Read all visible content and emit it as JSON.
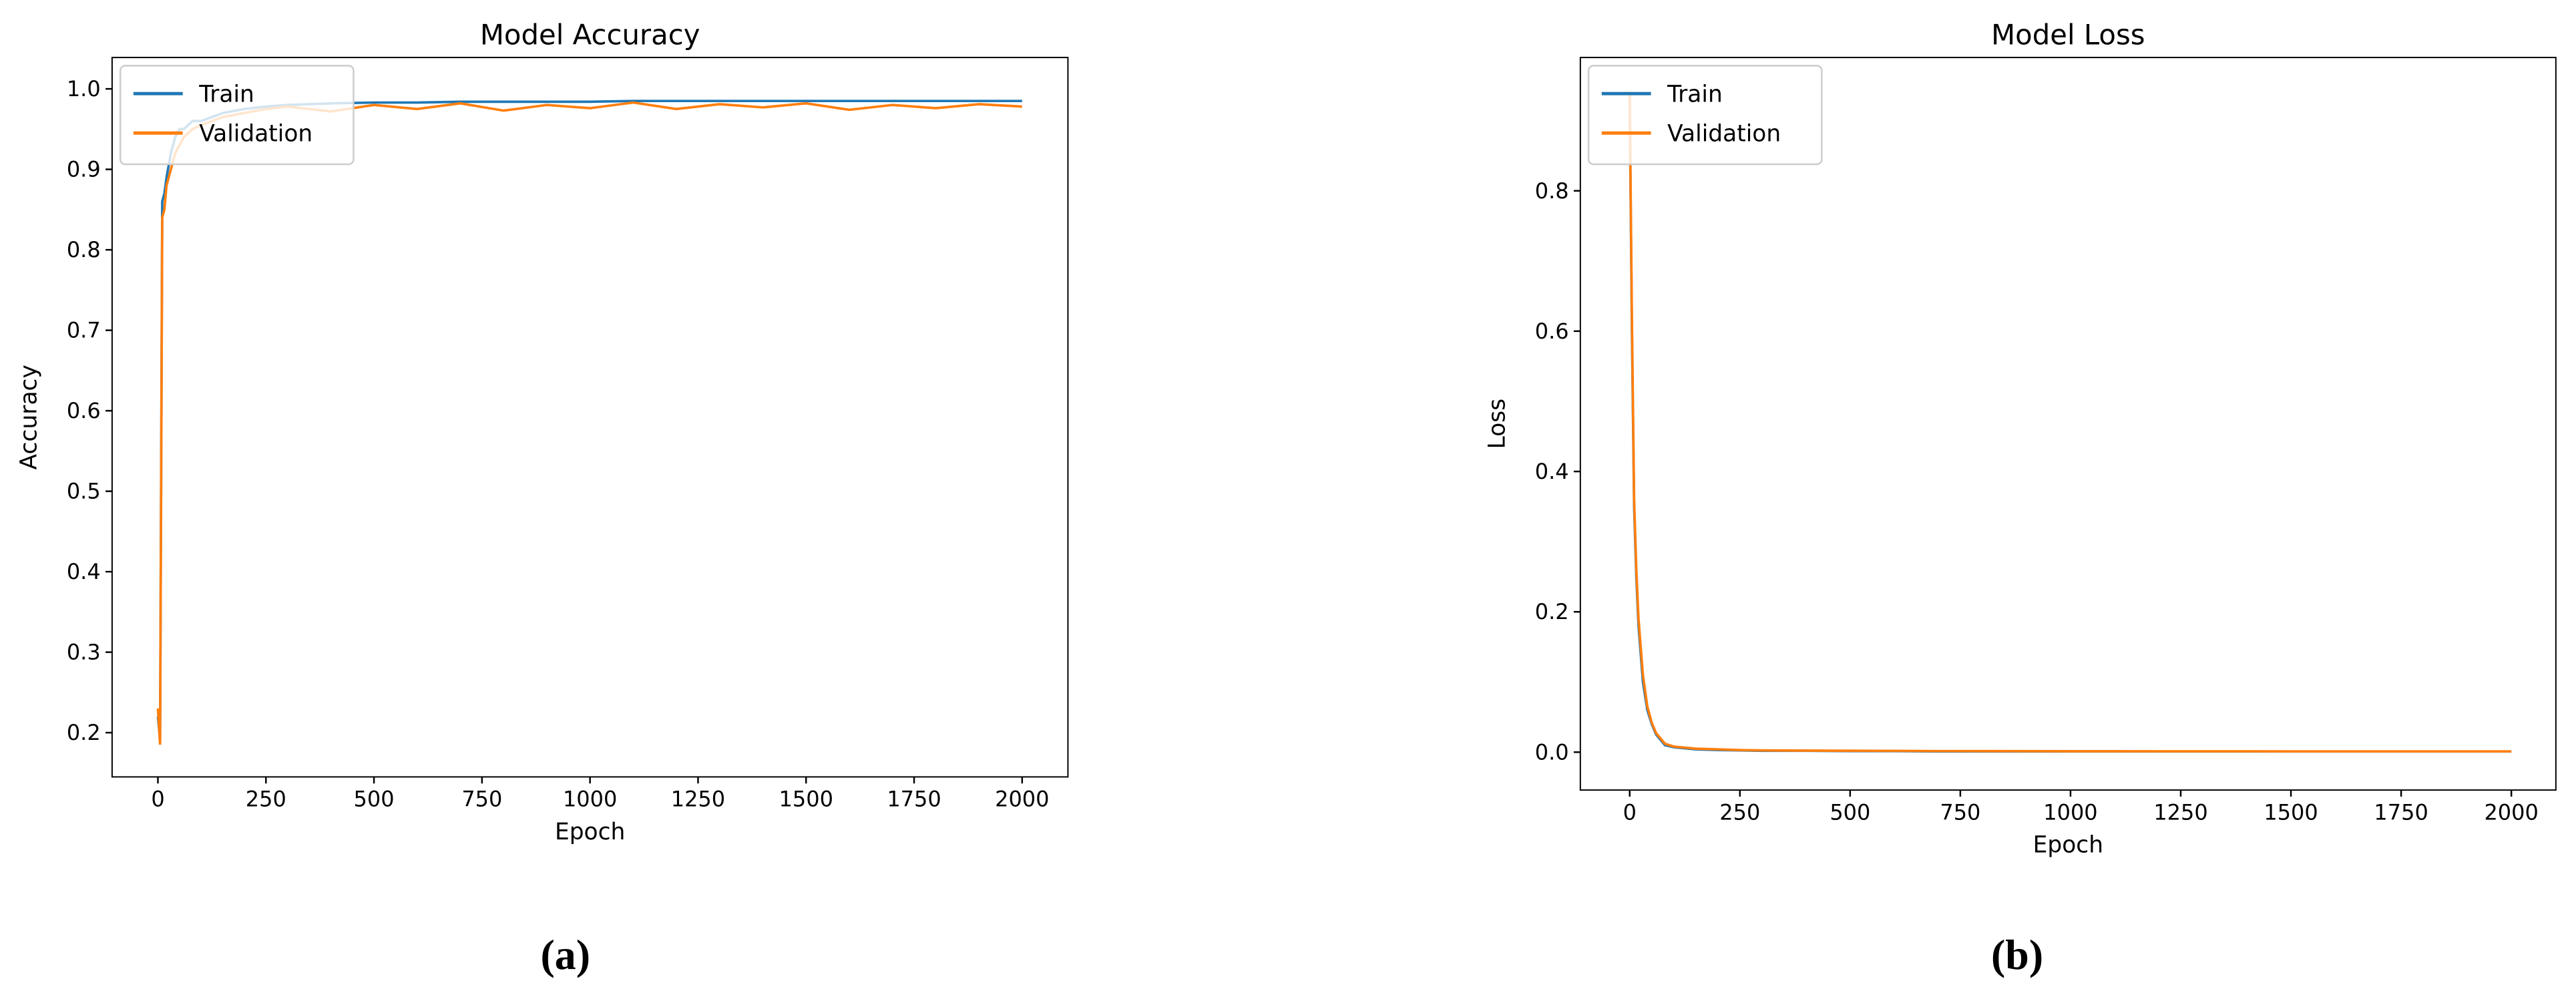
{
  "chart_data": [
    {
      "type": "line",
      "title": "Model Accuracy",
      "xlabel": "Epoch",
      "ylabel": "Accuracy",
      "caption": "(a)",
      "x": [
        0,
        5,
        10,
        15,
        20,
        30,
        40,
        50,
        60,
        80,
        100,
        150,
        200,
        250,
        300,
        400,
        500,
        600,
        700,
        800,
        900,
        1000,
        1100,
        1200,
        1300,
        1400,
        1500,
        1600,
        1700,
        1800,
        1900,
        2000
      ],
      "series": [
        {
          "name": "Train",
          "color": "#1f77b4",
          "values": [
            0.22,
            0.19,
            0.86,
            0.87,
            0.89,
            0.92,
            0.94,
            0.95,
            0.95,
            0.96,
            0.96,
            0.97,
            0.975,
            0.978,
            0.98,
            0.982,
            0.983,
            0.983,
            0.984,
            0.984,
            0.984,
            0.984,
            0.985,
            0.985,
            0.985,
            0.985,
            0.985,
            0.985,
            0.985,
            0.985,
            0.985,
            0.985
          ]
        },
        {
          "name": "Validation",
          "color": "#ff7f0e",
          "values": [
            0.23,
            0.185,
            0.84,
            0.85,
            0.88,
            0.9,
            0.92,
            0.93,
            0.94,
            0.95,
            0.955,
            0.965,
            0.97,
            0.975,
            0.978,
            0.972,
            0.98,
            0.975,
            0.982,
            0.973,
            0.98,
            0.976,
            0.983,
            0.975,
            0.981,
            0.977,
            0.982,
            0.974,
            0.98,
            0.976,
            0.981,
            0.978
          ]
        }
      ],
      "xlim": [
        -106,
        2106
      ],
      "ylim": [
        0.145,
        1.039
      ],
      "xticks": [
        0,
        250,
        500,
        750,
        1000,
        1250,
        1500,
        1750,
        2000
      ],
      "yticks": [
        0.2,
        0.3,
        0.4,
        0.5,
        0.6,
        0.7,
        0.8,
        0.9,
        {
          "value": 1,
          "label": "1.0"
        }
      ],
      "legend": "upper left",
      "grid": false
    },
    {
      "type": "line",
      "title": "Model Loss",
      "xlabel": "Epoch",
      "ylabel": "Loss",
      "caption": "(b)",
      "x": [
        0,
        5,
        10,
        15,
        20,
        30,
        40,
        50,
        60,
        80,
        100,
        150,
        200,
        250,
        300,
        400,
        500,
        600,
        700,
        800,
        900,
        1000,
        1100,
        1200,
        1300,
        1400,
        1500,
        1600,
        1700,
        1800,
        1900,
        2000
      ],
      "series": [
        {
          "name": "Train",
          "color": "#1f77b4",
          "values": [
            0.93,
            0.6,
            0.35,
            0.25,
            0.18,
            0.1,
            0.06,
            0.04,
            0.025,
            0.01,
            0.007,
            0.004,
            0.003,
            0.0025,
            0.002,
            0.002,
            0.0015,
            0.0015,
            0.001,
            0.001,
            0.001,
            0.001,
            0.001,
            0.001,
            0.001,
            0.001,
            0.001,
            0.001,
            0.001,
            0.001,
            0.001,
            0.001
          ]
        },
        {
          "name": "Validation",
          "color": "#ff7f0e",
          "values": [
            0.94,
            0.62,
            0.36,
            0.26,
            0.19,
            0.11,
            0.065,
            0.042,
            0.027,
            0.012,
            0.008,
            0.005,
            0.004,
            0.003,
            0.0025,
            0.0022,
            0.002,
            0.0018,
            0.0016,
            0.0015,
            0.0014,
            0.0013,
            0.0013,
            0.0012,
            0.0012,
            0.0012,
            0.0011,
            0.0011,
            0.0011,
            0.0011,
            0.0011,
            0.0011
          ]
        }
      ],
      "xlim": [
        -112,
        2101
      ],
      "ylim": [
        -0.054,
        0.99
      ],
      "xticks": [
        0,
        250,
        500,
        750,
        1000,
        1250,
        1500,
        1750,
        2000
      ],
      "yticks": [
        {
          "value": 0,
          "label": "0.0"
        },
        0.2,
        0.4,
        0.6,
        0.8
      ],
      "legend": "upper left",
      "grid": false
    }
  ]
}
